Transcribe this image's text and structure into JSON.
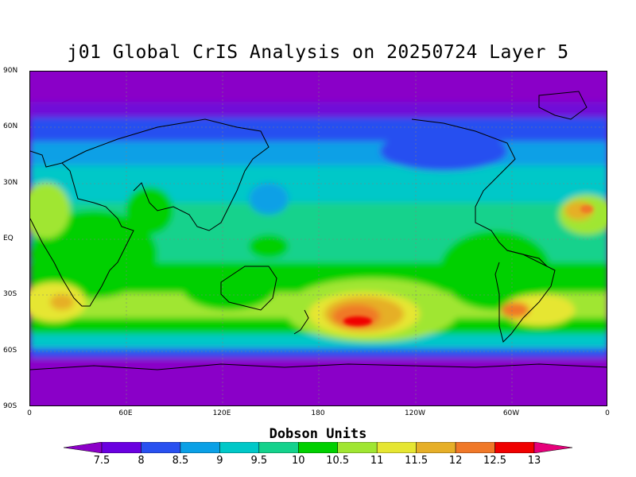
{
  "title": "j01 Global CrIS Analysis on 20250724 Layer 5",
  "units": "Dobson Units",
  "lat_labels": [
    "90N",
    "60N",
    "30N",
    "EQ",
    "30S",
    "60S",
    "90S"
  ],
  "lon_labels": [
    "0",
    "60E",
    "120E",
    "180",
    "120W",
    "60W",
    "0"
  ],
  "colorbar": {
    "labels": [
      "7.5",
      "8",
      "8.5",
      "9",
      "9.5",
      "10",
      "10.5",
      "11",
      "11.5",
      "12",
      "12.5",
      "13"
    ],
    "colors": [
      "#8c00c8",
      "#6a00e0",
      "#2850f0",
      "#0aa0e6",
      "#00c8c8",
      "#14d28c",
      "#00d000",
      "#a0e632",
      "#e6e632",
      "#e6af28",
      "#f07828",
      "#f00000",
      "#e6007a"
    ]
  }
}
